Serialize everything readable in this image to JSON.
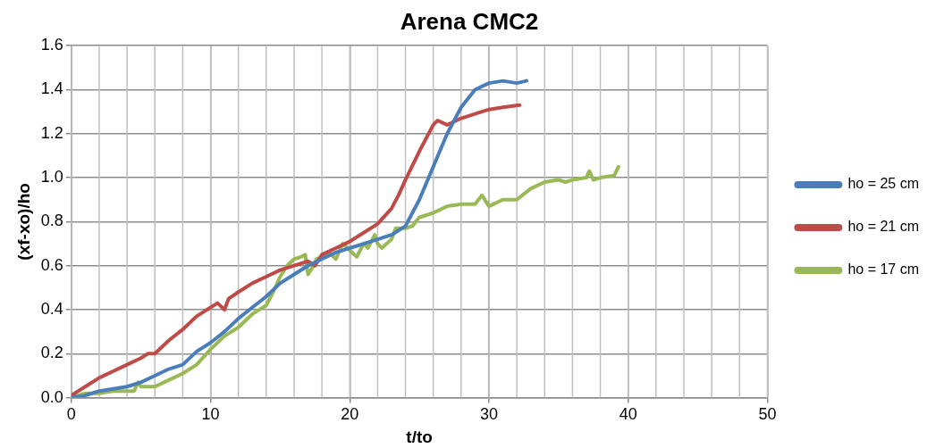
{
  "chart_data": {
    "type": "line",
    "title": "Arena CMC2",
    "xlabel": "t/to",
    "ylabel": "(xf-xo)/ho",
    "xlim": [
      0,
      50
    ],
    "xticks": [
      0,
      10,
      20,
      30,
      40,
      50
    ],
    "ylim": [
      0,
      1.6
    ],
    "yticks": [
      {
        "value": 0,
        "label": "0.0"
      },
      {
        "value": 0.2,
        "label": "0.2"
      },
      {
        "value": 0.4,
        "label": "0.4"
      },
      {
        "value": 0.6,
        "label": "0.6"
      },
      {
        "value": 0.8,
        "label": "0.8"
      },
      {
        "value": 1,
        "label": "1.0"
      },
      {
        "value": 1.2,
        "label": "1.2"
      },
      {
        "value": 1.4,
        "label": "1.4"
      },
      {
        "value": 1.6,
        "label": "1.6"
      }
    ],
    "grid": true,
    "legend": "right",
    "marker": "none",
    "line_style": "solid",
    "series": [
      {
        "name": "ho = 25 cm",
        "color": "#4a7ebb",
        "x": [
          0,
          1,
          2,
          3,
          4,
          5,
          6,
          7,
          8,
          9,
          10,
          11,
          12,
          13,
          14,
          15,
          16,
          17,
          18,
          19,
          20,
          21,
          22,
          23,
          24,
          24.5,
          25,
          26,
          27,
          28,
          29,
          30,
          31,
          32,
          32.7
        ],
        "values": [
          0,
          0.01,
          0.03,
          0.04,
          0.05,
          0.07,
          0.1,
          0.13,
          0.15,
          0.21,
          0.25,
          0.3,
          0.36,
          0.41,
          0.46,
          0.52,
          0.56,
          0.6,
          0.63,
          0.66,
          0.68,
          0.7,
          0.72,
          0.74,
          0.78,
          0.84,
          0.9,
          1.05,
          1.2,
          1.32,
          1.4,
          1.43,
          1.44,
          1.43,
          1.44
        ]
      },
      {
        "name": "ho = 21 cm",
        "color": "#be4b48",
        "x": [
          0,
          1,
          2,
          3,
          4,
          5,
          5.5,
          6,
          7,
          8,
          9,
          10,
          10.5,
          11,
          11.3,
          12,
          13,
          14,
          15,
          16,
          17,
          17.5,
          18,
          19,
          20,
          21,
          22,
          23,
          23.5,
          24,
          25,
          26,
          26.3,
          27,
          28,
          29,
          30,
          31,
          32.2
        ],
        "values": [
          0.01,
          0.05,
          0.09,
          0.12,
          0.15,
          0.18,
          0.2,
          0.2,
          0.26,
          0.31,
          0.37,
          0.41,
          0.43,
          0.4,
          0.45,
          0.48,
          0.52,
          0.55,
          0.58,
          0.6,
          0.62,
          0.6,
          0.65,
          0.68,
          0.71,
          0.75,
          0.79,
          0.86,
          0.92,
          0.99,
          1.12,
          1.24,
          1.26,
          1.24,
          1.27,
          1.29,
          1.31,
          1.32,
          1.33
        ]
      },
      {
        "name": "ho = 17 cm",
        "color": "#98b954",
        "x": [
          0,
          1,
          2,
          3,
          4,
          4.5,
          4.8,
          5,
          6,
          7,
          8,
          9,
          10,
          11,
          12,
          13,
          14,
          14.5,
          15,
          15.5,
          16,
          16.5,
          16.8,
          17,
          17.3,
          17.6,
          18,
          18.5,
          19,
          19.5,
          20,
          20.5,
          21,
          21.3,
          21.8,
          22,
          22.3,
          23,
          23.3,
          24,
          24.5,
          25,
          26,
          27,
          28,
          29,
          29.5,
          30,
          31,
          32,
          33,
          34,
          35,
          35.5,
          36,
          37,
          37.2,
          37.5,
          38,
          39,
          39.3
        ],
        "values": [
          0,
          0.02,
          0.02,
          0.03,
          0.03,
          0.03,
          0.07,
          0.05,
          0.05,
          0.08,
          0.11,
          0.15,
          0.22,
          0.28,
          0.32,
          0.38,
          0.42,
          0.48,
          0.55,
          0.6,
          0.63,
          0.64,
          0.65,
          0.56,
          0.59,
          0.63,
          0.64,
          0.66,
          0.63,
          0.7,
          0.67,
          0.64,
          0.7,
          0.68,
          0.74,
          0.7,
          0.68,
          0.72,
          0.77,
          0.77,
          0.78,
          0.82,
          0.84,
          0.87,
          0.88,
          0.88,
          0.92,
          0.87,
          0.9,
          0.9,
          0.95,
          0.98,
          0.99,
          0.98,
          0.99,
          1.0,
          1.03,
          0.99,
          1.0,
          1.01,
          1.05
        ]
      }
    ]
  }
}
